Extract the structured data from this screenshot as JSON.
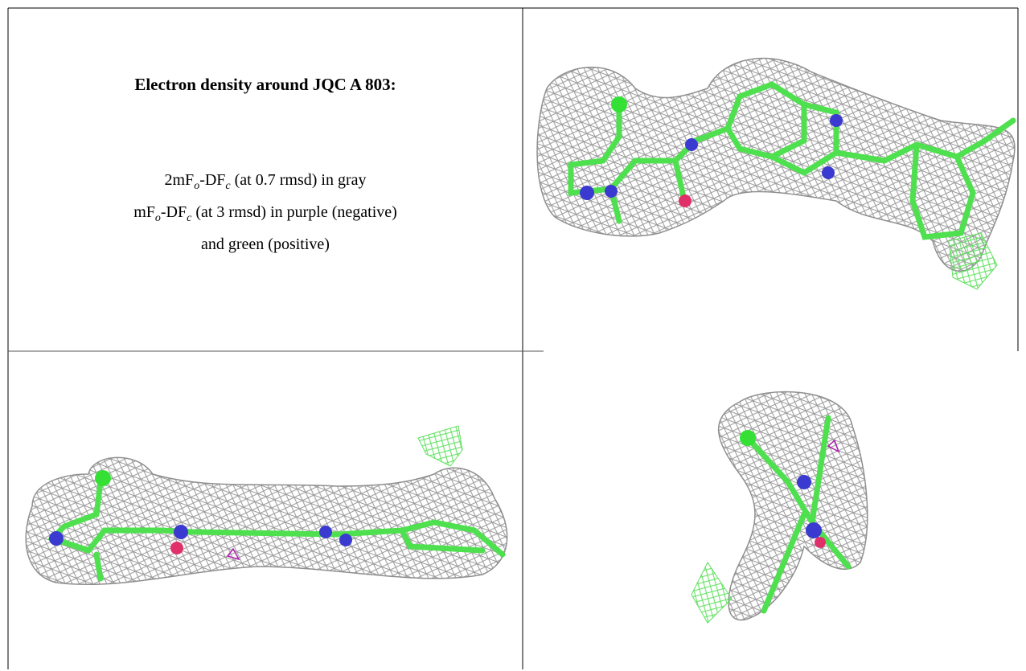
{
  "caption": {
    "title": "Electron density around JQC A 803:",
    "lines": [
      [
        "2mF",
        "o",
        "-DF",
        "c",
        " (at 0.7 rmsd) in gray"
      ],
      [
        "mF",
        "o",
        "-DF",
        "c",
        " (at 3 rmsd) in purple (negative)"
      ],
      [
        "and green (positive)"
      ]
    ]
  }
}
